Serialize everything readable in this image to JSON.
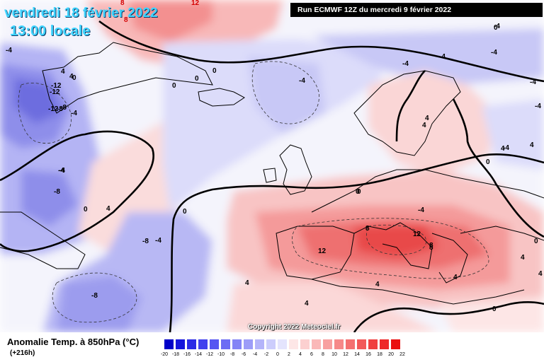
{
  "header": {
    "date_line": "vendredi 18 février 2022",
    "time_line": "13:00 locale",
    "run_info": "Run ECMWF 12Z du mercredi 9 février 2022"
  },
  "footer": {
    "variable_title": "Anomalie Temp. à 850hPa (°C)",
    "forecast_step": "(+216h)",
    "copyright": "Copyright 2022 Meteociel.fr"
  },
  "legend": {
    "ticks": [
      "-20",
      "-18",
      "-16",
      "-14",
      "-12",
      "-10",
      "-8",
      "-6",
      "-4",
      "-2",
      "0",
      "2",
      "4",
      "6",
      "8",
      "10",
      "12",
      "14",
      "16",
      "18",
      "20",
      "22"
    ],
    "colors": [
      "#0000c8",
      "#1414dc",
      "#2a2ae6",
      "#4040ee",
      "#5656f2",
      "#6c6cf4",
      "#8484f6",
      "#9c9cf8",
      "#b4b4fa",
      "#cccdfc",
      "#e4e4fd",
      "#fde6e6",
      "#fcd0d0",
      "#fab8b8",
      "#f8a0a0",
      "#f68888",
      "#f47070",
      "#f25858",
      "#f04040",
      "#ee2828",
      "#ea1010"
    ]
  },
  "contour_labels": [
    {
      "text": "8",
      "color": "red"
    },
    {
      "text": "12",
      "color": "red"
    },
    {
      "text": "8",
      "color": "red"
    },
    {
      "text": "0",
      "color": "black"
    },
    {
      "text": "0",
      "color": "black"
    },
    {
      "text": "0",
      "color": "black"
    },
    {
      "text": "-4",
      "color": "black"
    },
    {
      "text": "-4",
      "color": "black"
    },
    {
      "text": "-4",
      "color": "black"
    },
    {
      "text": "-4",
      "color": "black"
    },
    {
      "text": "-4",
      "color": "black"
    },
    {
      "text": "-4",
      "color": "black"
    },
    {
      "text": "4",
      "color": "black"
    },
    {
      "text": "4",
      "color": "black"
    },
    {
      "text": "0",
      "color": "black"
    },
    {
      "text": "-4",
      "color": "black"
    },
    {
      "text": "-12",
      "color": "black"
    },
    {
      "text": "-8",
      "color": "black"
    },
    {
      "text": "-12",
      "color": "black"
    },
    {
      "text": "-12",
      "color": "black"
    },
    {
      "text": "-8",
      "color": "black"
    },
    {
      "text": "-4",
      "color": "black"
    },
    {
      "text": "-4",
      "color": "black"
    },
    {
      "text": "-8",
      "color": "black"
    },
    {
      "text": "0",
      "color": "black"
    },
    {
      "text": "4",
      "color": "black"
    },
    {
      "text": "0",
      "color": "black"
    },
    {
      "text": "-8",
      "color": "black"
    },
    {
      "text": "-4",
      "color": "black"
    },
    {
      "text": "-8",
      "color": "black"
    },
    {
      "text": "4",
      "color": "black"
    },
    {
      "text": "0",
      "color": "black"
    },
    {
      "text": "8",
      "color": "black"
    },
    {
      "text": "12",
      "color": "black"
    },
    {
      "text": "8",
      "color": "black"
    },
    {
      "text": "12",
      "color": "black"
    },
    {
      "text": "8",
      "color": "black"
    },
    {
      "text": "4",
      "color": "black"
    },
    {
      "text": "4",
      "color": "black"
    },
    {
      "text": "4",
      "color": "black"
    },
    {
      "text": "0",
      "color": "black"
    },
    {
      "text": "-4",
      "color": "black"
    },
    {
      "text": "-4",
      "color": "black"
    },
    {
      "text": "-4",
      "color": "black"
    },
    {
      "text": "0",
      "color": "black"
    },
    {
      "text": "0",
      "color": "black"
    },
    {
      "text": "-4",
      "color": "black"
    },
    {
      "text": "4",
      "color": "black"
    },
    {
      "text": "0",
      "color": "black"
    },
    {
      "text": "4",
      "color": "black"
    },
    {
      "text": "4",
      "color": "black"
    },
    {
      "text": "4",
      "color": "black"
    },
    {
      "text": "0",
      "color": "black"
    },
    {
      "text": "4",
      "color": "black"
    },
    {
      "text": "4",
      "color": "black"
    }
  ]
}
